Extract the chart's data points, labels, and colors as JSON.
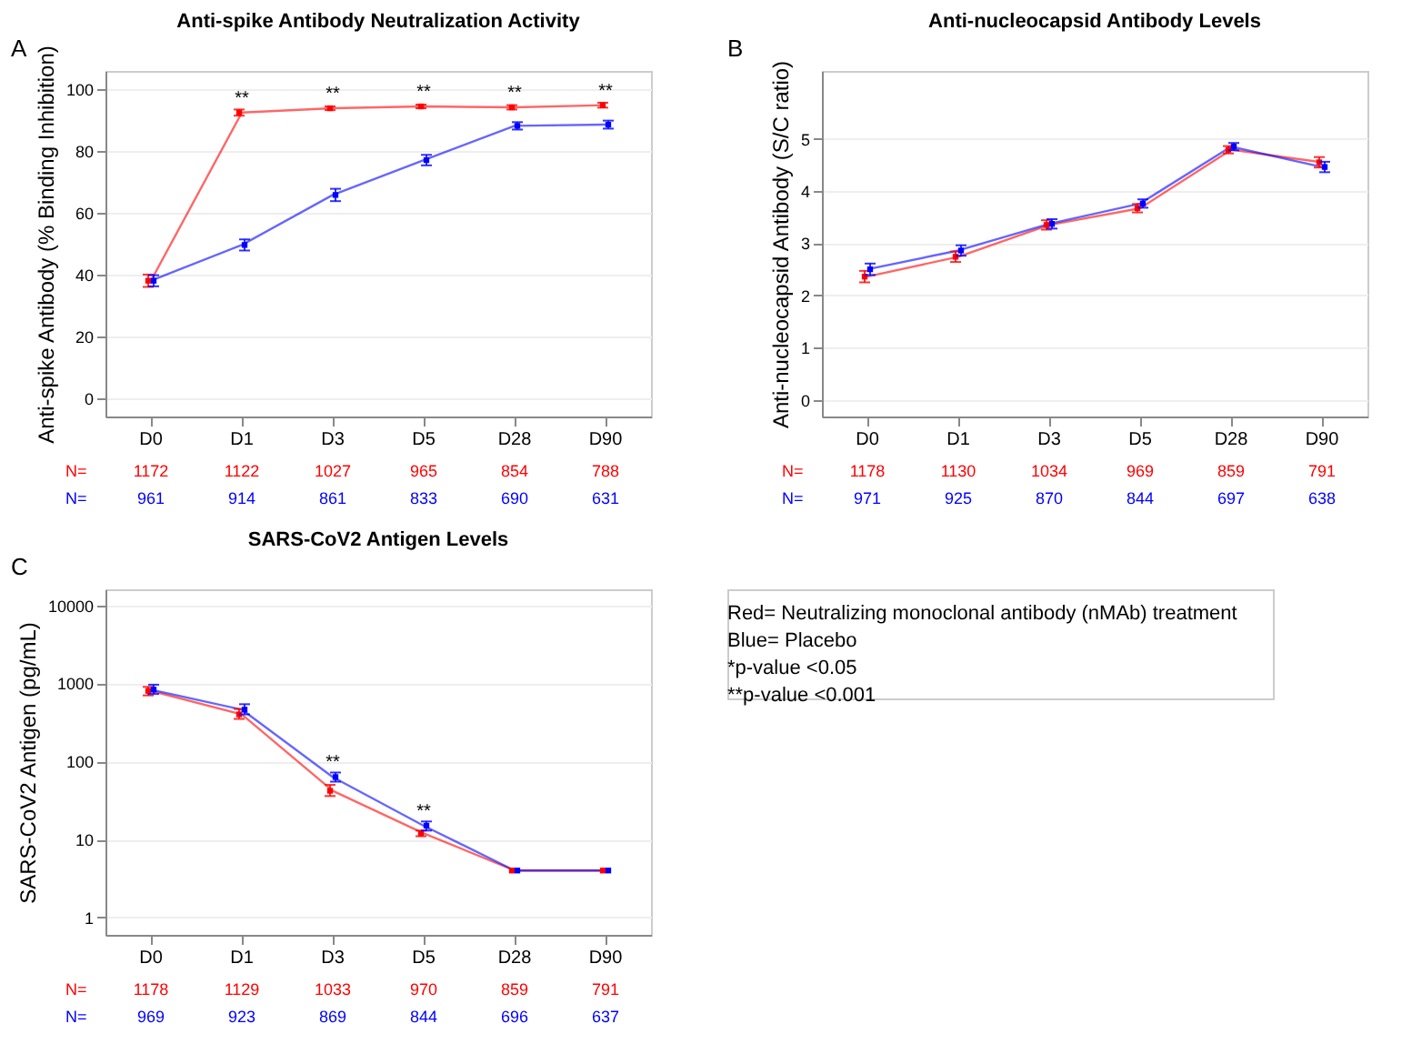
{
  "chart_data": [
    {
      "type": "line",
      "title": "Anti-spike Antibody Neutralization Activity",
      "ylabel": "Anti-spike Antibody (% Binding Inhibition)",
      "categories": [
        "D0",
        "D1",
        "D3",
        "D5",
        "D28",
        "D90"
      ],
      "ylim": [
        -6,
        106
      ],
      "yticks": [
        0,
        20,
        40,
        60,
        80,
        100
      ],
      "grid": "y",
      "marker": "square",
      "legend": false,
      "series": [
        {
          "color": "#ff0000",
          "values": [
            38,
            92.5,
            93.9,
            94.5,
            94.2,
            94.9
          ],
          "errors": [
            2,
            1,
            0.6,
            0.6,
            0.7,
            0.8
          ]
        },
        {
          "color": "#0000ff",
          "values": [
            38,
            49.6,
            65.8,
            77.1,
            88.2,
            88.6
          ],
          "errors": [
            1.8,
            1.8,
            2,
            1.7,
            1.2,
            1.3
          ]
        }
      ],
      "annotations": [
        "A",
        "N= 1172 1122 1027 965 854 788",
        "N= 961 914 861 833 690 631",
        {
          "text": "**",
          "x": "D1",
          "y": 92.5
        },
        {
          "text": "**",
          "x": "D3",
          "y": 93.9
        },
        {
          "text": "**",
          "x": "D5",
          "y": 94.5
        },
        {
          "text": "**",
          "x": "D28",
          "y": 94.2
        },
        {
          "text": "**",
          "x": "D90",
          "y": 94.9
        }
      ]
    },
    {
      "type": "line",
      "title": "Anti-nucleocapsid Antibody Levels",
      "ylabel": "Anti-nucleocapsid Antibody (S/C ratio)",
      "categories": [
        "D0",
        "D1",
        "D3",
        "D5",
        "D28",
        "D90"
      ],
      "ylim": [
        -0.32,
        6.3
      ],
      "yticks": [
        0,
        1,
        2,
        3,
        4,
        5
      ],
      "grid": "y",
      "marker": "square",
      "legend": false,
      "series": [
        {
          "color": "#ff0000",
          "values": [
            2.36,
            2.74,
            3.35,
            3.67,
            4.79,
            4.55
          ],
          "errors": [
            0.11,
            0.1,
            0.09,
            0.08,
            0.07,
            0.1
          ]
        },
        {
          "color": "#0000ff",
          "values": [
            2.5,
            2.86,
            3.37,
            3.76,
            4.85,
            4.46
          ],
          "errors": [
            0.11,
            0.1,
            0.09,
            0.08,
            0.07,
            0.1
          ]
        }
      ],
      "annotations": [
        "B",
        "N= 1178 1130 1034 969 859 791",
        "N= 971 925 870 844 697 638"
      ]
    },
    {
      "type": "line",
      "title": "SARS-CoV2 Antigen Levels",
      "ylabel": "SARS-CoV2 Antigen (pg/mL)",
      "categories": [
        "D0",
        "D1",
        "D3",
        "D5",
        "D28",
        "D90"
      ],
      "log": true,
      "ylim": [
        0.6,
        16000
      ],
      "yticks": [
        1,
        10,
        100,
        1000,
        10000
      ],
      "grid": "y",
      "marker": "square",
      "legend": false,
      "series": [
        {
          "color": "#ff0000",
          "values": [
            800,
            400,
            42,
            12,
            4,
            4
          ],
          "errors": [
            [
              700,
              900
            ],
            [
              350,
              470
            ],
            [
              36,
              50
            ],
            [
              11,
              13
            ],
            null,
            null
          ]
        },
        {
          "color": "#0000ff",
          "values": [
            830,
            460,
            63,
            15,
            4,
            4
          ],
          "errors": [
            [
              730,
              960
            ],
            [
              400,
              540
            ],
            [
              55,
              72
            ],
            [
              13,
              17
            ],
            null,
            null
          ]
        }
      ],
      "annotations": [
        "C",
        "N= 1178 1129 1033 970 859 791",
        "N= 969 923 869 844 696 637",
        {
          "text": "**",
          "x": "D3",
          "y": 63
        },
        {
          "text": "**",
          "x": "D5",
          "y": 15
        }
      ]
    },
    {
      "type": "other",
      "annotations": [
        "Red= Neutralizing monoclonal antibody (nMAb) treatment",
        "Blue= Placebo",
        "*p-value <0.05",
        "**p-value <0.001"
      ]
    }
  ]
}
